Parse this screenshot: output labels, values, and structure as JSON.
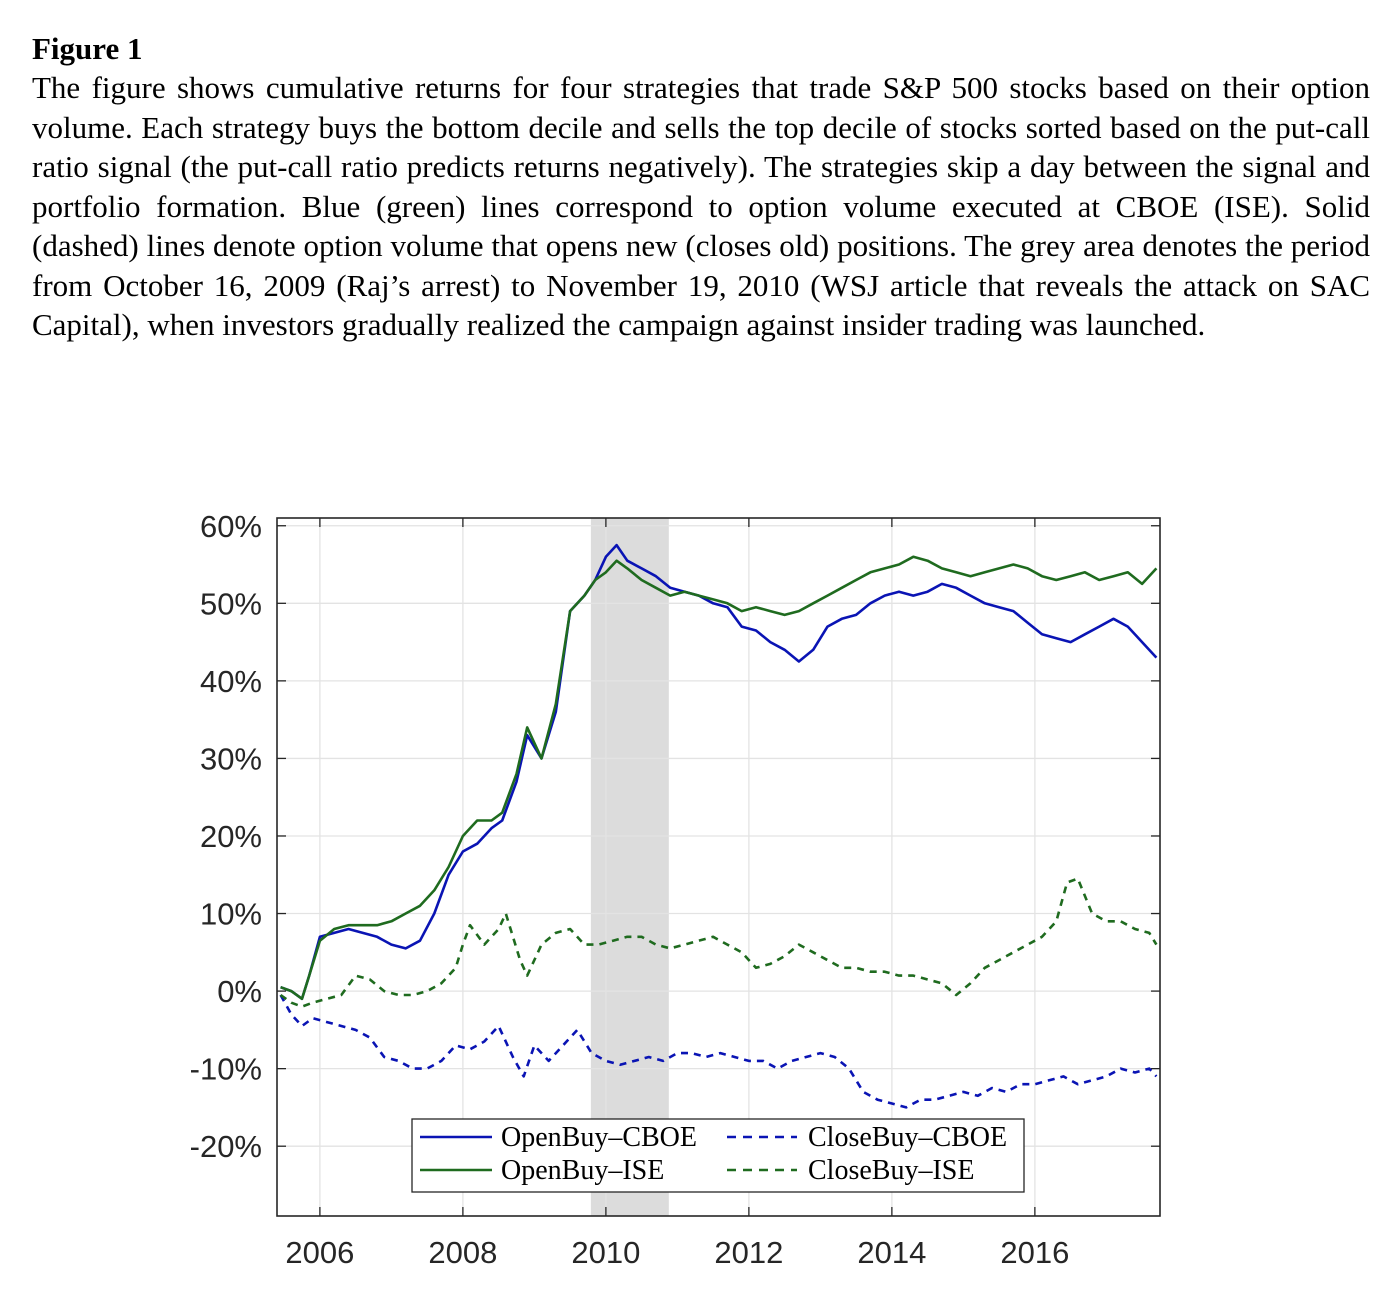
{
  "figure": {
    "title": "Figure 1",
    "caption": "The figure shows cumulative returns for four strategies that trade S&P 500 stocks based on their option volume. Each strategy buys the bottom decile and sells the top decile of stocks sorted based on the put-call ratio signal (the put-call ratio predicts returns negatively). The strategies skip a day between the signal and portfolio formation. Blue (green) lines correspond to option volume executed at CBOE (ISE). Solid (dashed) lines denote option volume that opens new (closes old) positions. The grey area denotes the period from October 16, 2009 (Raj’s arrest) to November 19, 2010 (WSJ article that reveals the attack on SAC Capital), when investors gradually realized the campaign against insider trading was launched."
  },
  "chart_data": {
    "type": "line",
    "title": "",
    "xlabel": "",
    "ylabel": "",
    "xlim": [
      2005.4,
      2017.75
    ],
    "ylim": [
      -0.29,
      0.61
    ],
    "x_ticks": [
      2006,
      2008,
      2010,
      2012,
      2014,
      2016
    ],
    "x_tick_labels": [
      "2006",
      "2008",
      "2010",
      "2012",
      "2014",
      "2016"
    ],
    "y_ticks": [
      -0.2,
      -0.1,
      0,
      0.1,
      0.2,
      0.3,
      0.4,
      0.5,
      0.6
    ],
    "y_tick_labels": [
      "-20%",
      "-10%",
      "0%",
      "10%",
      "20%",
      "30%",
      "40%",
      "50%",
      "60%"
    ],
    "grid": true,
    "legend_position": "bottom-center",
    "shaded_region": {
      "x0": 2009.79,
      "x1": 2010.88,
      "color": "#dcdcdc"
    },
    "series": [
      {
        "name": "OpenBuy–CBOE",
        "color": "#0a14b4",
        "style": "solid",
        "x": [
          2005.45,
          2005.6,
          2005.75,
          2005.85,
          2006.0,
          2006.2,
          2006.4,
          2006.6,
          2006.8,
          2007.0,
          2007.2,
          2007.4,
          2007.6,
          2007.8,
          2008.0,
          2008.2,
          2008.4,
          2008.55,
          2008.75,
          2008.9,
          2009.1,
          2009.3,
          2009.5,
          2009.7,
          2009.85,
          2010.0,
          2010.15,
          2010.3,
          2010.5,
          2010.7,
          2010.9,
          2011.1,
          2011.3,
          2011.5,
          2011.7,
          2011.9,
          2012.1,
          2012.3,
          2012.5,
          2012.7,
          2012.9,
          2013.1,
          2013.3,
          2013.5,
          2013.7,
          2013.9,
          2014.1,
          2014.3,
          2014.5,
          2014.7,
          2014.9,
          2015.1,
          2015.3,
          2015.5,
          2015.7,
          2015.9,
          2016.1,
          2016.3,
          2016.5,
          2016.7,
          2016.9,
          2017.1,
          2017.3,
          2017.5,
          2017.7
        ],
        "y": [
          0.005,
          0.0,
          -0.01,
          0.02,
          0.07,
          0.075,
          0.08,
          0.075,
          0.07,
          0.06,
          0.055,
          0.065,
          0.1,
          0.15,
          0.18,
          0.19,
          0.21,
          0.22,
          0.27,
          0.33,
          0.3,
          0.36,
          0.49,
          0.51,
          0.53,
          0.56,
          0.575,
          0.555,
          0.545,
          0.535,
          0.52,
          0.515,
          0.51,
          0.5,
          0.495,
          0.47,
          0.465,
          0.45,
          0.44,
          0.425,
          0.44,
          0.47,
          0.48,
          0.485,
          0.5,
          0.51,
          0.515,
          0.51,
          0.515,
          0.525,
          0.52,
          0.51,
          0.5,
          0.495,
          0.49,
          0.475,
          0.46,
          0.455,
          0.45,
          0.46,
          0.47,
          0.48,
          0.47,
          0.45,
          0.43
        ]
      },
      {
        "name": "OpenBuy–ISE",
        "color": "#1f6b1f",
        "style": "solid",
        "x": [
          2005.45,
          2005.6,
          2005.75,
          2005.85,
          2006.0,
          2006.2,
          2006.4,
          2006.6,
          2006.8,
          2007.0,
          2007.2,
          2007.4,
          2007.6,
          2007.8,
          2008.0,
          2008.2,
          2008.4,
          2008.55,
          2008.75,
          2008.9,
          2009.1,
          2009.3,
          2009.5,
          2009.7,
          2009.85,
          2010.0,
          2010.15,
          2010.3,
          2010.5,
          2010.7,
          2010.9,
          2011.1,
          2011.3,
          2011.5,
          2011.7,
          2011.9,
          2012.1,
          2012.3,
          2012.5,
          2012.7,
          2012.9,
          2013.1,
          2013.3,
          2013.5,
          2013.7,
          2013.9,
          2014.1,
          2014.3,
          2014.5,
          2014.7,
          2014.9,
          2015.1,
          2015.3,
          2015.5,
          2015.7,
          2015.9,
          2016.1,
          2016.3,
          2016.5,
          2016.7,
          2016.9,
          2017.1,
          2017.3,
          2017.5,
          2017.7
        ],
        "y": [
          0.005,
          0.0,
          -0.01,
          0.02,
          0.065,
          0.08,
          0.085,
          0.085,
          0.085,
          0.09,
          0.1,
          0.11,
          0.13,
          0.16,
          0.2,
          0.22,
          0.22,
          0.23,
          0.28,
          0.34,
          0.3,
          0.37,
          0.49,
          0.51,
          0.53,
          0.54,
          0.555,
          0.545,
          0.53,
          0.52,
          0.51,
          0.515,
          0.51,
          0.505,
          0.5,
          0.49,
          0.495,
          0.49,
          0.485,
          0.49,
          0.5,
          0.51,
          0.52,
          0.53,
          0.54,
          0.545,
          0.55,
          0.56,
          0.555,
          0.545,
          0.54,
          0.535,
          0.54,
          0.545,
          0.55,
          0.545,
          0.535,
          0.53,
          0.535,
          0.54,
          0.53,
          0.535,
          0.54,
          0.525,
          0.545
        ]
      },
      {
        "name": "CloseBuy–CBOE",
        "color": "#0a14b4",
        "style": "dashed",
        "x": [
          2005.45,
          2005.6,
          2005.75,
          2005.9,
          2006.1,
          2006.3,
          2006.5,
          2006.7,
          2006.9,
          2007.1,
          2007.3,
          2007.5,
          2007.7,
          2007.9,
          2008.1,
          2008.3,
          2008.5,
          2008.7,
          2008.85,
          2009.0,
          2009.2,
          2009.4,
          2009.6,
          2009.8,
          2010.0,
          2010.2,
          2010.4,
          2010.6,
          2010.8,
          2011.0,
          2011.2,
          2011.4,
          2011.6,
          2011.8,
          2012.0,
          2012.2,
          2012.4,
          2012.6,
          2012.8,
          2013.0,
          2013.2,
          2013.4,
          2013.6,
          2013.8,
          2014.0,
          2014.2,
          2014.4,
          2014.6,
          2014.8,
          2015.0,
          2015.2,
          2015.4,
          2015.6,
          2015.8,
          2016.0,
          2016.2,
          2016.4,
          2016.6,
          2016.8,
          2017.0,
          2017.2,
          2017.4,
          2017.6,
          2017.7
        ],
        "y": [
          -0.005,
          -0.03,
          -0.045,
          -0.035,
          -0.04,
          -0.045,
          -0.05,
          -0.06,
          -0.085,
          -0.09,
          -0.1,
          -0.1,
          -0.09,
          -0.07,
          -0.075,
          -0.065,
          -0.045,
          -0.085,
          -0.11,
          -0.07,
          -0.09,
          -0.07,
          -0.05,
          -0.08,
          -0.09,
          -0.095,
          -0.09,
          -0.085,
          -0.09,
          -0.08,
          -0.08,
          -0.085,
          -0.08,
          -0.085,
          -0.09,
          -0.09,
          -0.1,
          -0.09,
          -0.085,
          -0.08,
          -0.085,
          -0.1,
          -0.13,
          -0.14,
          -0.145,
          -0.15,
          -0.14,
          -0.14,
          -0.135,
          -0.13,
          -0.135,
          -0.125,
          -0.13,
          -0.12,
          -0.12,
          -0.115,
          -0.11,
          -0.12,
          -0.115,
          -0.11,
          -0.1,
          -0.105,
          -0.1,
          -0.11
        ]
      },
      {
        "name": "CloseBuy–ISE",
        "color": "#1f6b1f",
        "style": "dashed",
        "x": [
          2005.45,
          2005.6,
          2005.75,
          2005.9,
          2006.1,
          2006.3,
          2006.5,
          2006.7,
          2006.9,
          2007.1,
          2007.3,
          2007.5,
          2007.7,
          2007.9,
          2008.0,
          2008.1,
          2008.3,
          2008.5,
          2008.6,
          2008.8,
          2008.9,
          2009.1,
          2009.3,
          2009.5,
          2009.7,
          2009.9,
          2010.1,
          2010.3,
          2010.5,
          2010.7,
          2010.9,
          2011.1,
          2011.3,
          2011.5,
          2011.7,
          2011.9,
          2012.1,
          2012.3,
          2012.5,
          2012.7,
          2012.9,
          2013.1,
          2013.3,
          2013.5,
          2013.7,
          2013.9,
          2014.1,
          2014.3,
          2014.5,
          2014.7,
          2014.9,
          2015.1,
          2015.3,
          2015.5,
          2015.7,
          2015.9,
          2016.1,
          2016.3,
          2016.45,
          2016.6,
          2016.8,
          2017.0,
          2017.2,
          2017.4,
          2017.6,
          2017.7
        ],
        "y": [
          -0.005,
          -0.015,
          -0.02,
          -0.015,
          -0.01,
          -0.005,
          0.02,
          0.015,
          0.0,
          -0.005,
          -0.005,
          0.0,
          0.01,
          0.03,
          0.06,
          0.085,
          0.06,
          0.08,
          0.1,
          0.04,
          0.02,
          0.06,
          0.075,
          0.08,
          0.06,
          0.06,
          0.065,
          0.07,
          0.07,
          0.06,
          0.055,
          0.06,
          0.065,
          0.07,
          0.06,
          0.05,
          0.03,
          0.035,
          0.045,
          0.06,
          0.05,
          0.04,
          0.03,
          0.03,
          0.025,
          0.025,
          0.02,
          0.02,
          0.015,
          0.01,
          -0.005,
          0.01,
          0.03,
          0.04,
          0.05,
          0.06,
          0.07,
          0.09,
          0.14,
          0.145,
          0.1,
          0.09,
          0.09,
          0.08,
          0.075,
          0.06
        ]
      }
    ]
  }
}
